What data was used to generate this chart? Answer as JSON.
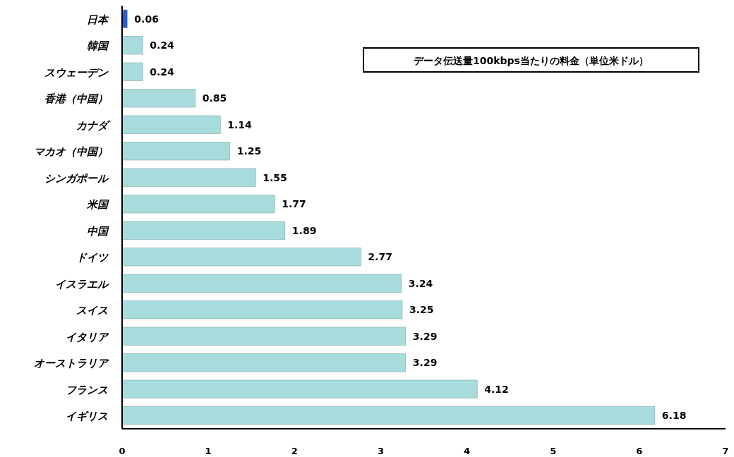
{
  "chart_data": {
    "type": "bar",
    "orientation": "horizontal",
    "title": "データ伝送量100kbps当たりの料金（単位米ドル）",
    "categories": [
      "日本",
      "韓国",
      "スウェーデン",
      "香港（中国）",
      "カナダ",
      "マカオ（中国）",
      "シンガポール",
      "米国",
      "中国",
      "ドイツ",
      "イスラエル",
      "スイス",
      "イタリア",
      "オーストラリア",
      "フランス",
      "イギリス"
    ],
    "values": [
      0.06,
      0.24,
      0.24,
      0.85,
      1.14,
      1.25,
      1.55,
      1.77,
      1.89,
      2.77,
      3.24,
      3.25,
      3.29,
      3.29,
      4.12,
      6.18
    ],
    "colors": [
      "#2a5bd7",
      "#a8dcdc",
      "#a8dcdc",
      "#a8dcdc",
      "#a8dcdc",
      "#a8dcdc",
      "#a8dcdc",
      "#a8dcdc",
      "#a8dcdc",
      "#a8dcdc",
      "#a8dcdc",
      "#a8dcdc",
      "#a8dcdc",
      "#a8dcdc",
      "#a8dcdc",
      "#a8dcdc"
    ],
    "xlim": [
      0,
      7
    ],
    "xticks": [
      0,
      1,
      2,
      3,
      4,
      5,
      6,
      7
    ],
    "data_labels": true,
    "grid": false
  }
}
